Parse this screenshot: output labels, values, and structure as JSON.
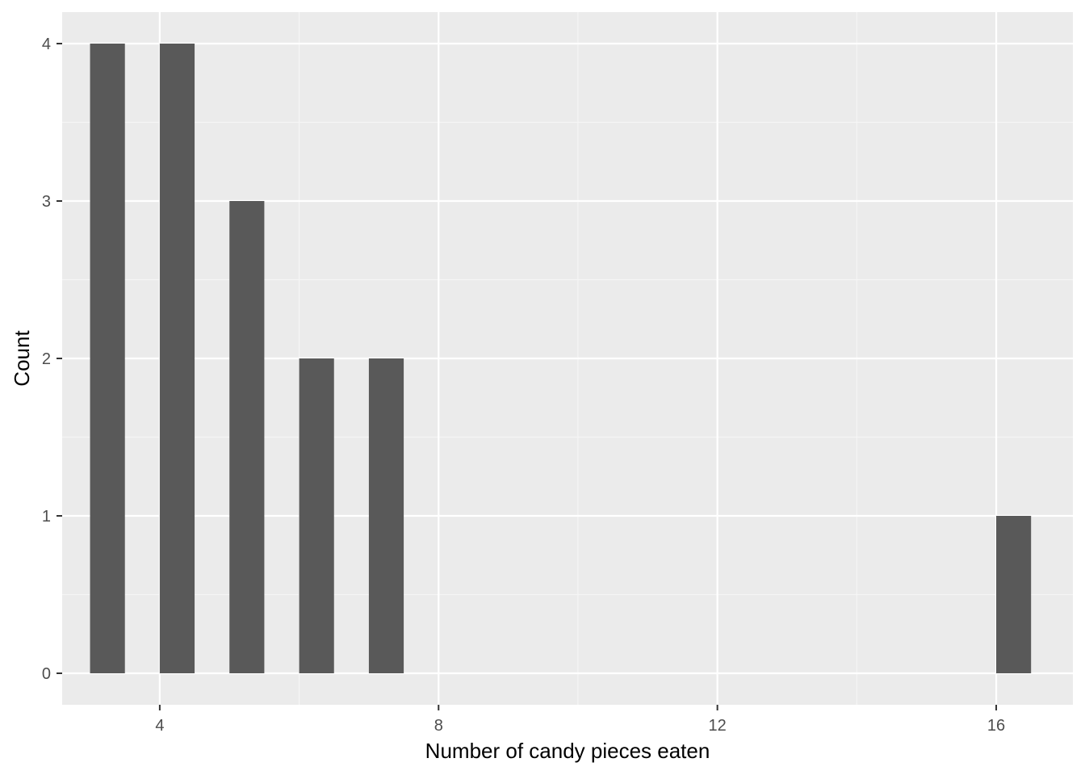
{
  "chart_data": {
    "type": "bar",
    "xlabel": "Number of candy pieces eaten",
    "ylabel": "Count",
    "xlim": [
      2.6,
      17.1
    ],
    "ylim": [
      -0.2,
      4.2
    ],
    "x_ticks": [
      4,
      8,
      12,
      16
    ],
    "y_ticks": [
      0,
      1,
      2,
      3,
      4
    ],
    "bars": [
      {
        "x": 3.25,
        "value": 4
      },
      {
        "x": 4.25,
        "value": 4
      },
      {
        "x": 5.25,
        "value": 3
      },
      {
        "x": 6.25,
        "value": 2
      },
      {
        "x": 7.25,
        "value": 2
      },
      {
        "x": 16.25,
        "value": 1
      }
    ],
    "bar_width": 0.5,
    "grid": true,
    "colors": {
      "panel": "#ebebeb",
      "grid_major": "#ffffff",
      "grid_minor": "#f5f5f5",
      "bar": "#595959",
      "tick": "#333333"
    }
  }
}
